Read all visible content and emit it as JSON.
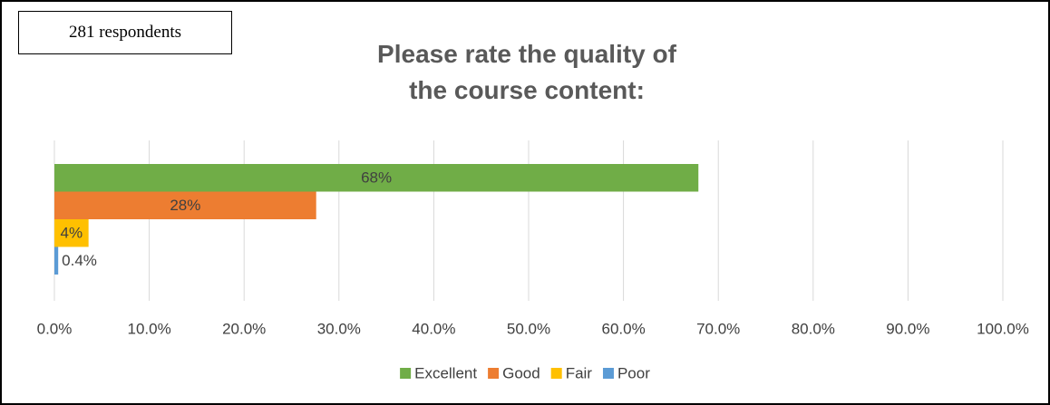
{
  "chart_data": {
    "type": "barh",
    "title": "Please rate the quality of the course content:",
    "annotation": "281 respondents",
    "series": [
      {
        "name": "Excellent",
        "color": "#70ad47",
        "values": [
          67.9
        ],
        "value_labels": [
          "68%"
        ]
      },
      {
        "name": "Good",
        "color": "#ed7d31",
        "values": [
          27.6
        ],
        "value_labels": [
          "28%"
        ]
      },
      {
        "name": "Fair",
        "color": "#ffc000",
        "values": [
          3.6
        ],
        "value_labels": [
          "4%"
        ]
      },
      {
        "name": "Poor",
        "color": "#5b9bd5",
        "values": [
          0.4
        ],
        "value_labels": [
          "0.4%"
        ]
      }
    ],
    "xlim": [
      0,
      100
    ],
    "xticks": [
      {
        "value": 0,
        "label": "0.0%"
      },
      {
        "value": 10,
        "label": "10.0%"
      },
      {
        "value": 20,
        "label": "20.0%"
      },
      {
        "value": 30,
        "label": "30.0%"
      },
      {
        "value": 40,
        "label": "40.0%"
      },
      {
        "value": 50,
        "label": "50.0%"
      },
      {
        "value": 60,
        "label": "60.0%"
      },
      {
        "value": 70,
        "label": "70.0%"
      },
      {
        "value": 80,
        "label": "80.0%"
      },
      {
        "value": 90,
        "label": "90.0%"
      },
      {
        "value": 100,
        "label": "100.0%"
      }
    ],
    "grid": true,
    "legend": "bottom"
  }
}
